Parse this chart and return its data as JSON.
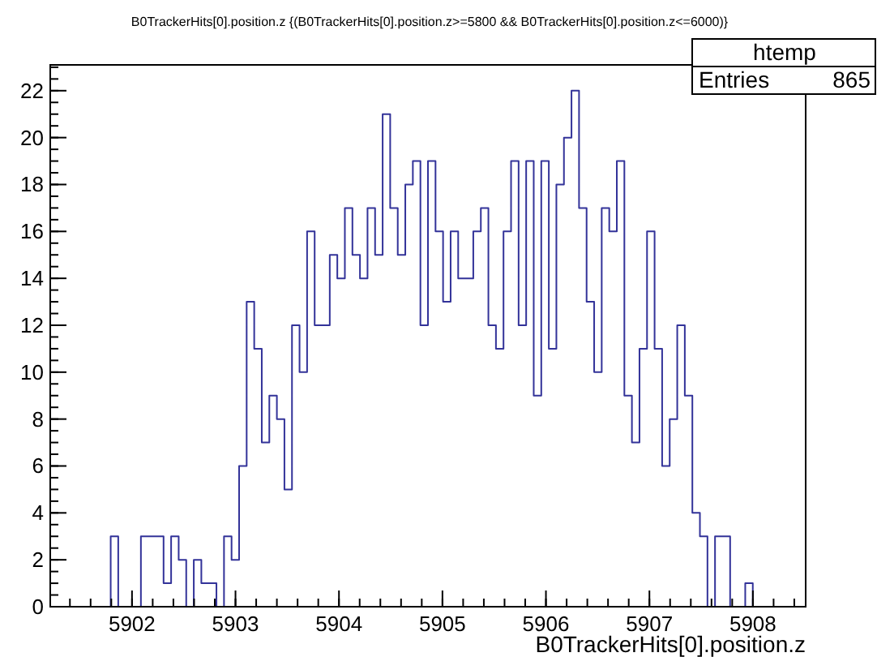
{
  "chart_data": {
    "type": "histogram",
    "title": "B0TrackerHits[0].position.z {(B0TrackerHits[0].position.z>=5800 && B0TrackerHits[0].position.z<=6000)}",
    "xlabel": "B0TrackerHits[0].position.z",
    "annotations": [
      "htemp",
      "Entries 865"
    ],
    "color": "#333399",
    "bins": [
      5901.21,
      5901.283,
      5901.356,
      5901.429,
      5901.502,
      5901.575,
      5901.648,
      5901.721,
      5901.794,
      5901.867,
      5901.94,
      5902.013,
      5902.086,
      5902.159,
      5902.232,
      5902.305,
      5902.378,
      5902.451,
      5902.524,
      5902.597,
      5902.67,
      5902.743,
      5902.816,
      5902.889,
      5902.962,
      5903.035,
      5903.108,
      5903.181,
      5903.254,
      5903.327,
      5903.4,
      5903.473,
      5903.546,
      5903.619,
      5903.692,
      5903.765,
      5903.838,
      5903.911,
      5903.984,
      5904.057,
      5904.13,
      5904.203,
      5904.276,
      5904.349,
      5904.422,
      5904.495,
      5904.568,
      5904.641,
      5904.714,
      5904.787,
      5904.86,
      5904.933,
      5905.006,
      5905.079,
      5905.152,
      5905.225,
      5905.298,
      5905.371,
      5905.444,
      5905.517,
      5905.59,
      5905.663,
      5905.736,
      5905.809,
      5905.882,
      5905.955,
      5906.028,
      5906.101,
      5906.174,
      5906.247,
      5906.32,
      5906.393,
      5906.466,
      5906.539,
      5906.612,
      5906.685,
      5906.758,
      5906.831,
      5906.904,
      5906.977,
      5907.05,
      5907.123,
      5907.196,
      5907.269,
      5907.342,
      5907.415,
      5907.488,
      5907.561,
      5907.634,
      5907.707,
      5907.78,
      5907.853,
      5907.926,
      5907.999,
      5908.072,
      5908.145,
      5908.218,
      5908.291,
      5908.364,
      5908.437,
      5908.51
    ],
    "values": [
      0,
      0,
      0,
      0,
      0,
      0,
      0,
      0,
      3,
      0,
      0,
      0,
      3,
      3,
      3,
      1,
      3,
      2,
      0,
      2,
      1,
      1,
      0,
      3,
      2,
      6,
      13,
      11,
      7,
      9,
      8,
      5,
      12,
      10,
      16,
      12,
      12,
      15,
      14,
      17,
      15,
      14,
      17,
      15,
      21,
      17,
      15,
      18,
      19,
      12,
      19,
      16,
      13,
      16,
      14,
      14,
      16,
      17,
      12,
      11,
      16,
      19,
      12,
      19,
      9,
      19,
      11,
      18,
      20,
      22,
      17,
      13,
      10,
      17,
      16,
      19,
      9,
      7,
      11,
      16,
      11,
      6,
      8,
      12,
      9,
      4,
      3,
      0,
      3,
      3,
      0,
      0,
      1,
      0,
      0,
      0,
      0,
      0,
      0,
      0
    ],
    "xlim": [
      5901.21,
      5908.51
    ],
    "xticks": [
      5902,
      5903,
      5904,
      5905,
      5906,
      5907,
      5908
    ],
    "ylim": [
      0,
      23.1
    ],
    "yticks": [
      0,
      2,
      4,
      6,
      8,
      10,
      12,
      14,
      16,
      18,
      20,
      22
    ],
    "grid": false
  }
}
